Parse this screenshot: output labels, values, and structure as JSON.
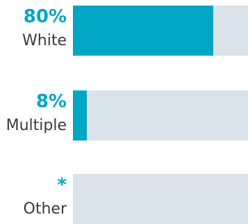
{
  "colors": {
    "accent": "#00a6c4",
    "track": "#dbe3ea",
    "label_text": "#3a3a3a"
  },
  "chart_data": {
    "type": "bar",
    "orientation": "horizontal",
    "categories": [
      "White",
      "Multiple",
      "Other"
    ],
    "value_labels": [
      "80%",
      "8%",
      "*"
    ],
    "values": [
      80,
      8,
      null
    ],
    "xlim": [
      0,
      100
    ],
    "grid": false,
    "title": "",
    "xlabel": "",
    "ylabel": ""
  }
}
